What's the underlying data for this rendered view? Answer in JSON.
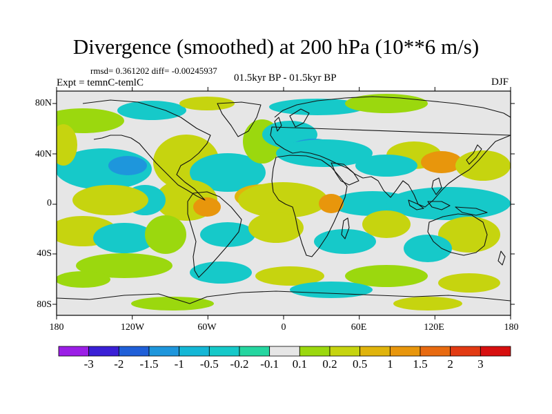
{
  "title": "Divergence (smoothed) at 200 hPa (10**6 m/s)",
  "stats": "rmsd= 0.361202 diff= -0.00245937",
  "experiment": "Expt = temnC-temlC",
  "period": "01.5kyr BP - 01.5kyr BP",
  "season": "DJF",
  "lat_labels": [
    "80N",
    "40N",
    "0",
    "40S",
    "80S"
  ],
  "lon_labels": [
    "180",
    "120W",
    "60W",
    "0",
    "60E",
    "120E",
    "180"
  ],
  "colorbar": {
    "labels": [
      "-3",
      "-2",
      "-1.5",
      "-1",
      "-0.5",
      "-0.2",
      "-0.1",
      "0.1",
      "0.2",
      "0.5",
      "1",
      "1.5",
      "2",
      "3"
    ],
    "colors": [
      "#9b1ee6",
      "#3a1fd6",
      "#1f5fd8",
      "#1e96dc",
      "#14b7d6",
      "#16c9c9",
      "#25d6a0",
      "#e6e6e6",
      "#9bd80e",
      "#c6d40f",
      "#e0b40c",
      "#e8960c",
      "#e86a10",
      "#e23a12",
      "#d70f0f"
    ]
  },
  "colors": {
    "background": "#e6e6e6",
    "blue": "#1e96dc",
    "cyan": "#16c9c9",
    "green": "#25d6a0",
    "yellowgreen": "#9bd80e",
    "yellow": "#c6d40f",
    "orange": "#e0b40c",
    "deep_orange": "#e8960c",
    "deep_blue": "#1f5fd8"
  }
}
